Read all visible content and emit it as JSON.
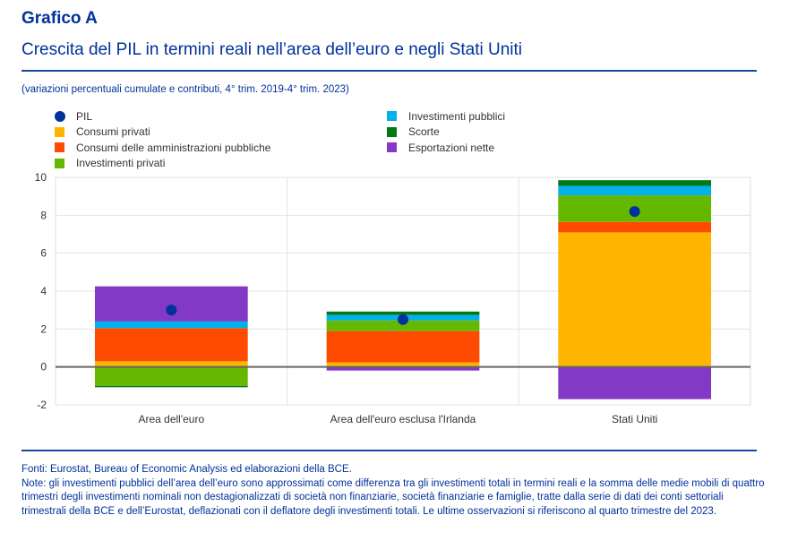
{
  "header": {
    "title": "Grafico A",
    "subtitle": "Crescita del PIL in termini reali nell’area dell’euro e negli Stati Uniti",
    "units": "(variazioni percentuali cumulate e contributi, 4° trim. 2019-4° trim. 2023)"
  },
  "legend": {
    "left": [
      {
        "label": "PIL",
        "color": "#003299",
        "shape": "dot"
      },
      {
        "label": "Consumi privati",
        "color": "#ffb400",
        "shape": "square"
      },
      {
        "label": "Consumi delle amministrazioni pubbliche",
        "color": "#ff4b00",
        "shape": "square"
      },
      {
        "label": "Investimenti privati",
        "color": "#65b800",
        "shape": "square"
      }
    ],
    "right": [
      {
        "label": "Investimenti pubblici",
        "color": "#00b1ea",
        "shape": "square"
      },
      {
        "label": "Scorte",
        "color": "#007816",
        "shape": "square"
      },
      {
        "label": "Esportazioni nette",
        "color": "#8139c6",
        "shape": "square"
      }
    ]
  },
  "chart_data": {
    "type": "bar",
    "stacked": true,
    "title": "Crescita del PIL in termini reali nell’area dell’euro e negli Stati Uniti",
    "xlabel": "",
    "ylabel": "",
    "ylim": [
      -2,
      10
    ],
    "yticks": [
      "10",
      "8",
      "6",
      "4",
      "2",
      "0",
      "-2"
    ],
    "ytick_values": [
      10,
      8,
      6,
      4,
      2,
      0,
      -2
    ],
    "grid": true,
    "legend_position": "top",
    "categories": [
      "Area dell'euro",
      "Area dell'euro esclusa l'Irlanda",
      "Stati Uniti"
    ],
    "series": [
      {
        "name": "Consumi privati",
        "color": "#ffb400",
        "values": [
          0.3,
          0.24,
          7.1
        ]
      },
      {
        "name": "Consumi delle amministrazioni pubbliche",
        "color": "#ff4b00",
        "values": [
          1.75,
          1.65,
          0.55
        ]
      },
      {
        "name": "Investimenti privati",
        "color": "#65b800",
        "values": [
          -1.0,
          0.56,
          1.4
        ]
      },
      {
        "name": "Investimenti pubblici",
        "color": "#00b1ea",
        "values": [
          0.35,
          0.29,
          0.5
        ]
      },
      {
        "name": "Scorte",
        "color": "#007816",
        "values": [
          -0.07,
          0.18,
          0.3
        ]
      },
      {
        "name": "Esportazioni nette",
        "color": "#8139c6",
        "values": [
          1.85,
          -0.19,
          -1.7
        ]
      }
    ],
    "markers": {
      "name": "PIL",
      "color": "#003299",
      "values": [
        3.0,
        2.5,
        8.2
      ]
    }
  },
  "footer": {
    "sources": "Fonti: Eurostat, Bureau of Economic Analysis ed elaborazioni della BCE.",
    "notes": "Note: gli investimenti pubblici dell’area dell’euro sono approssimati come differenza tra gli investimenti totali in termini reali e la somma delle medie mobili di quattro trimestri degli investimenti nominali non destagionalizzati di società non finanziarie, società finanziarie e famiglie, tratte dalla serie di dati dei conti settoriali trimestrali della BCE e dell’Eurostat, deflazionati con il deflatore degli investimenti totali. Le ultime osservazioni si riferiscono al quarto trimestre del 2023."
  }
}
